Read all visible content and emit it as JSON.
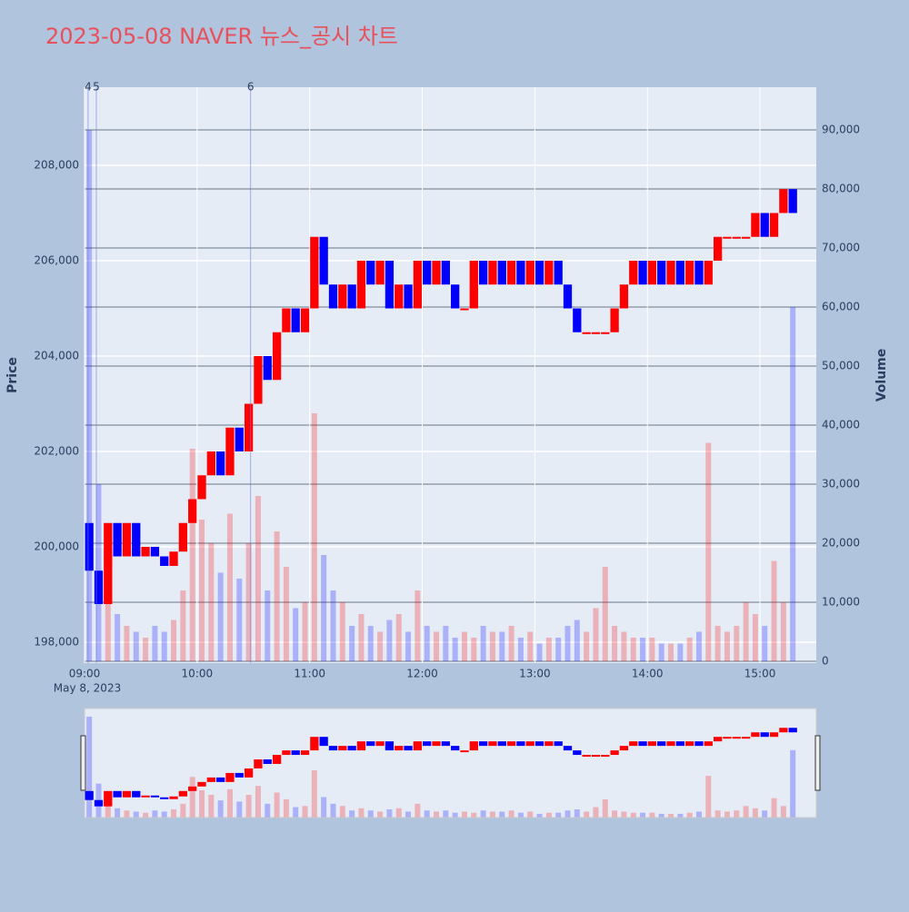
{
  "chart_data": {
    "type": "candlestick",
    "title": "2023-05-08 NAVER 뉴스_공시 차트",
    "ylabel": "Price",
    "y2label": "Volume",
    "x_sublabel": "May 8, 2023",
    "xlim": [
      0,
      390
    ],
    "xticks": [
      {
        "value": 0,
        "label": "09:00"
      },
      {
        "value": 60,
        "label": "10:00"
      },
      {
        "value": 120,
        "label": "11:00"
      },
      {
        "value": 180,
        "label": "12:00"
      },
      {
        "value": 240,
        "label": "13:00"
      },
      {
        "value": 300,
        "label": "14:00"
      },
      {
        "value": 360,
        "label": "15:00"
      }
    ],
    "ylim": [
      197562,
      209638
    ],
    "yticks": [
      {
        "value": 198000,
        "label": "198,000"
      },
      {
        "value": 200000,
        "label": "200,000"
      },
      {
        "value": 202000,
        "label": "202,000"
      },
      {
        "value": 204000,
        "label": "204,000"
      },
      {
        "value": 206000,
        "label": "206,000"
      },
      {
        "value": 208000,
        "label": "208,000"
      }
    ],
    "y2lim": [
      -308,
      97231
    ],
    "y2ticks": [
      0,
      {
        "value": 10000,
        "label": "10,000"
      },
      {
        "value": 20000,
        "label": "20,000"
      },
      {
        "value": 30000,
        "label": "30,000"
      },
      {
        "value": 40000,
        "label": "40,000"
      },
      {
        "value": 50000,
        "label": "50,000"
      },
      {
        "value": 60000,
        "label": "60,000"
      },
      {
        "value": 70000,
        "label": "70,000"
      },
      {
        "value": 80000,
        "label": "80,000"
      },
      {
        "value": 90000,
        "label": "90,000"
      }
    ],
    "up_color": "#ff0000",
    "down_color": "#0000ff",
    "x": [
      0,
      5,
      10,
      15,
      20,
      25,
      30,
      35,
      40,
      45,
      50,
      55,
      60,
      65,
      70,
      75,
      80,
      85,
      90,
      95,
      100,
      105,
      110,
      115,
      120,
      125,
      130,
      135,
      140,
      145,
      150,
      155,
      160,
      165,
      170,
      175,
      180,
      185,
      190,
      195,
      200,
      205,
      210,
      215,
      220,
      225,
      230,
      235,
      240,
      245,
      250,
      255,
      260,
      265,
      270,
      275,
      280,
      285,
      290,
      295,
      300,
      305,
      310,
      315,
      320,
      325,
      330,
      335,
      340,
      345,
      350,
      355,
      360,
      365,
      370,
      375
    ],
    "open": [
      200500,
      199500,
      198800,
      200500,
      199800,
      200500,
      199800,
      200000,
      199800,
      199600,
      199900,
      200500,
      201000,
      201500,
      202000,
      201500,
      202500,
      202000,
      203000,
      204000,
      203500,
      204500,
      205000,
      204500,
      205000,
      206500,
      205500,
      205000,
      205500,
      205000,
      206000,
      205500,
      206000,
      205000,
      205500,
      205000,
      206000,
      205500,
      206000,
      205500,
      205000,
      205000,
      206000,
      205500,
      206000,
      205500,
      206000,
      205500,
      206000,
      205500,
      206000,
      205500,
      205000,
      204500,
      204500,
      204500,
      204500,
      205000,
      205500,
      206000,
      205500,
      206000,
      205500,
      206000,
      205500,
      206000,
      205500,
      206000,
      206500,
      206500,
      206500,
      206500,
      207000,
      206500,
      207000,
      207500
    ],
    "close": [
      199500,
      198800,
      200500,
      199800,
      200500,
      199800,
      200000,
      199800,
      199600,
      199900,
      200500,
      201000,
      201500,
      202000,
      201500,
      202500,
      202000,
      203000,
      204000,
      203500,
      204500,
      205000,
      204500,
      205000,
      206500,
      205500,
      205000,
      205500,
      205000,
      206000,
      205500,
      206000,
      205000,
      205500,
      205000,
      206000,
      205500,
      206000,
      205500,
      205000,
      205000,
      206000,
      205500,
      206000,
      205500,
      206000,
      205500,
      206000,
      205500,
      206000,
      205500,
      205000,
      204500,
      204500,
      204500,
      204500,
      205000,
      205500,
      206000,
      205500,
      206000,
      205500,
      206000,
      205500,
      206000,
      205500,
      206000,
      206500,
      206500,
      206500,
      206500,
      207000,
      206500,
      207000,
      207500,
      207000
    ],
    "volume": [
      90000,
      30000,
      15000,
      8000,
      6000,
      5000,
      4000,
      6000,
      5000,
      7000,
      12000,
      36000,
      24000,
      20000,
      15000,
      25000,
      14000,
      20000,
      28000,
      12000,
      22000,
      16000,
      9000,
      10000,
      42000,
      18000,
      12000,
      10000,
      6000,
      8000,
      6000,
      5000,
      7000,
      8000,
      5000,
      12000,
      6000,
      5000,
      6000,
      4000,
      5000,
      4000,
      6000,
      5000,
      5000,
      6000,
      4000,
      5000,
      3000,
      4000,
      4000,
      6000,
      7000,
      5000,
      9000,
      16000,
      6000,
      5000,
      4000,
      4000,
      4000,
      3000,
      3000,
      3000,
      4000,
      5000,
      37000,
      6000,
      5000,
      6000,
      10000,
      8000,
      6000,
      17000,
      10000,
      60000
    ],
    "annotations": [
      {
        "x": 1.9,
        "label": "4"
      },
      {
        "x": 6.3,
        "label": "5"
      },
      {
        "x": 88.5,
        "label": "6"
      }
    ]
  }
}
